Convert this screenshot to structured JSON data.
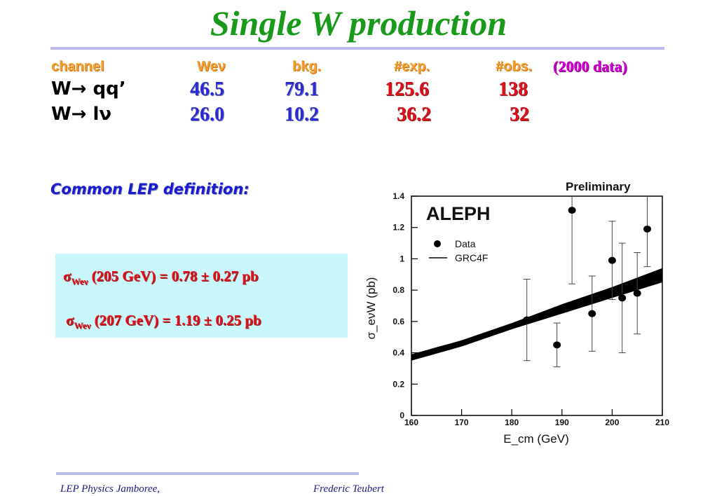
{
  "slide": {
    "title": "Single W production",
    "table": {
      "headers": [
        "channel",
        "Weν",
        "bkg.",
        "#exp.",
        "#obs.",
        "(2000 data)"
      ],
      "rows": [
        {
          "channel": "W→ qq’",
          "wev": "46.5",
          "bkg": "79.1",
          "exp": "125.6",
          "obs": "138"
        },
        {
          "channel": "W→ lν",
          "wev": "26.0",
          "bkg": "10.2",
          "exp": "36.2",
          "obs": "32"
        }
      ]
    },
    "lep_definition": "Common LEP definition:",
    "results": [
      {
        "sigma": "σ",
        "sub": "Weν",
        "text": " (205 GeV) =  0.78 ± 0.27 pb"
      },
      {
        "sigma": "σ",
        "sub": "Weν",
        "text": " (207 GeV) =  1.19 ± 0.25 pb"
      }
    ],
    "footer_left": "LEP Physics Jamboree,",
    "footer_right": "Frederic Teubert",
    "colors": {
      "title": "#1a9a1a",
      "blue_values": "#2a2ad6",
      "red_values": "#e0101a",
      "box": "#c8f6fa"
    }
  },
  "chart_data": {
    "type": "scatter",
    "title": "ALEPH",
    "annotation": "Preliminary",
    "xlabel": "E_cm (GeV)",
    "ylabel": "σ_eνW (pb)",
    "xlim": [
      160,
      210
    ],
    "ylim": [
      0,
      1.4
    ],
    "xticks": [
      160,
      170,
      180,
      190,
      200,
      210
    ],
    "yticks": [
      0,
      0.2,
      0.4,
      0.6,
      0.8,
      1,
      1.2,
      1.4
    ],
    "ytick_labels": [
      "0",
      "0.2",
      "0.4",
      "0.6",
      "0.8",
      "1",
      "1.2",
      "1.4"
    ],
    "legend": [
      "Data",
      "GRC4F"
    ],
    "legend_position": "top-left",
    "series": [
      {
        "name": "Data",
        "points": [
          {
            "x": 183,
            "y": 0.61,
            "lo": 0.35,
            "hi": 0.87
          },
          {
            "x": 189,
            "y": 0.45,
            "lo": 0.31,
            "hi": 0.59
          },
          {
            "x": 192,
            "y": 1.31,
            "lo": 0.84,
            "hi": 1.78
          },
          {
            "x": 196,
            "y": 0.65,
            "lo": 0.41,
            "hi": 0.89
          },
          {
            "x": 200,
            "y": 0.99,
            "lo": 0.74,
            "hi": 1.24
          },
          {
            "x": 202,
            "y": 0.75,
            "lo": 0.4,
            "hi": 1.1
          },
          {
            "x": 205,
            "y": 0.78,
            "lo": 0.52,
            "hi": 1.04
          },
          {
            "x": 207,
            "y": 1.19,
            "lo": 0.95,
            "hi": 1.43
          }
        ]
      },
      {
        "name": "GRC4F",
        "band": [
          {
            "x": 160,
            "lo": 0.35,
            "hi": 0.39
          },
          {
            "x": 170,
            "lo": 0.44,
            "hi": 0.48
          },
          {
            "x": 180,
            "lo": 0.55,
            "hi": 0.59
          },
          {
            "x": 190,
            "lo": 0.65,
            "hi": 0.71
          },
          {
            "x": 200,
            "lo": 0.75,
            "hi": 0.82
          },
          {
            "x": 210,
            "lo": 0.85,
            "hi": 0.94
          }
        ]
      }
    ]
  }
}
